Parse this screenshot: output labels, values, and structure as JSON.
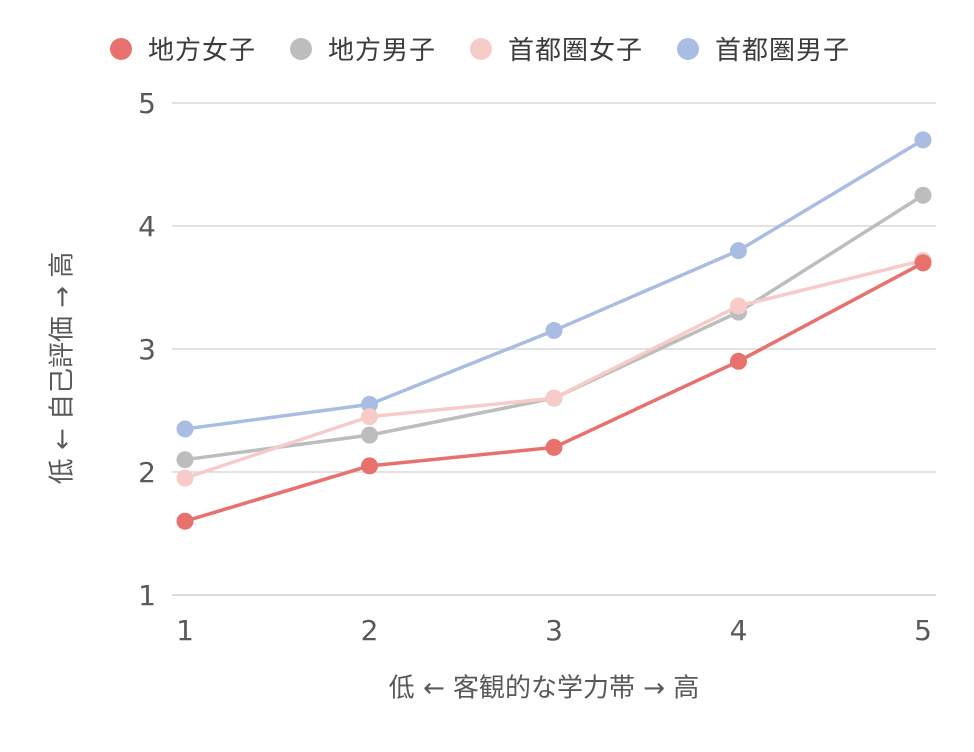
{
  "chart_data": {
    "type": "line",
    "title": "",
    "xlabel": "低 ← 客観的な学力帯 → 高",
    "ylabel": "低 ← 自己評価 → 高",
    "x": [
      1,
      2,
      3,
      4,
      5
    ],
    "xlim": [
      1,
      5
    ],
    "ylim": [
      1,
      5
    ],
    "yticks": [
      1,
      2,
      3,
      4,
      5
    ],
    "grid": true,
    "legend_position": "top",
    "series": [
      {
        "name": "地方女子",
        "color": "#e8716e",
        "values": [
          1.6,
          2.05,
          2.2,
          2.9,
          3.7
        ]
      },
      {
        "name": "地方男子",
        "color": "#bdbdbd",
        "values": [
          2.1,
          2.3,
          2.6,
          3.3,
          4.25
        ]
      },
      {
        "name": "首都圏女子",
        "color": "#f6cbc8",
        "values": [
          1.95,
          2.45,
          2.6,
          3.35,
          3.72
        ]
      },
      {
        "name": "首都圏男子",
        "color": "#a9bde3",
        "values": [
          2.35,
          2.55,
          3.15,
          3.8,
          4.7
        ]
      }
    ]
  }
}
